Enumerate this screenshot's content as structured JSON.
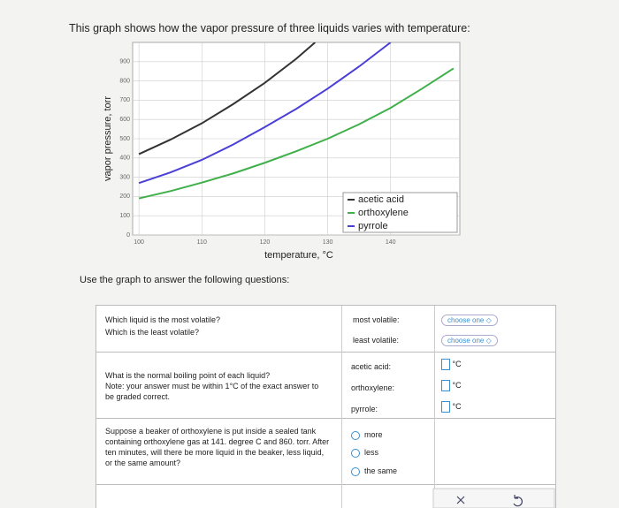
{
  "header": {
    "intro": "This graph shows how the vapor pressure of three liquids varies with temperature:",
    "instruction": "Use the graph to answer the following questions:"
  },
  "chart_data": {
    "type": "line",
    "x_label": "temperature, °C",
    "y_label": "vapor pressure, torr",
    "xlim": [
      99,
      151
    ],
    "xticks": [
      100,
      110,
      120,
      130,
      140
    ],
    "ylim": [
      0,
      1000
    ],
    "yticks": [
      0,
      100,
      200,
      300,
      400,
      500,
      600,
      700,
      800,
      900
    ],
    "grid": true,
    "legend": "lower right",
    "series": [
      {
        "name": "acetic acid",
        "color": "#333333",
        "x": [
          100,
          105,
          110,
          115,
          120,
          125,
          128
        ],
        "values": [
          420,
          495,
          580,
          680,
          790,
          915,
          1000
        ]
      },
      {
        "name": "orthoxylene",
        "color": "#3fb04a",
        "x": [
          100,
          105,
          110,
          115,
          120,
          125,
          130,
          135,
          140,
          145,
          150
        ],
        "values": [
          190,
          228,
          272,
          320,
          375,
          435,
          500,
          575,
          660,
          760,
          865
        ]
      },
      {
        "name": "pyrrole",
        "color": "#4a3fd6",
        "x": [
          100,
          105,
          110,
          115,
          120,
          125,
          130,
          135,
          140
        ],
        "values": [
          270,
          325,
          390,
          470,
          560,
          655,
          760,
          875,
          1000
        ]
      }
    ]
  },
  "questions": [
    {
      "prompt": [
        "Which liquid is the most volatile?",
        "Which is the least volatile?"
      ],
      "fields": [
        {
          "label": "most volatile:",
          "control": "choose one"
        },
        {
          "label": "least volatile:",
          "control": "choose one"
        }
      ]
    },
    {
      "prompt": [
        "What is the normal boiling point of each liquid?",
        "Note: your answer must be within 1°C of the exact answer to be graded correct."
      ],
      "fields": [
        {
          "label": "acetic acid:",
          "unit": "°C"
        },
        {
          "label": "orthoxylene:",
          "unit": "°C"
        },
        {
          "label": "pyrrole:",
          "unit": "°C"
        }
      ]
    },
    {
      "prompt": [
        "Suppose a beaker of orthoxylene is put inside a sealed tank containing orthoxylene gas at 141. degree C and 860. torr. After ten minutes, will there be more liquid in the beaker, less liquid, or the same amount?"
      ],
      "options": [
        "more",
        "less",
        "the same"
      ]
    }
  ]
}
